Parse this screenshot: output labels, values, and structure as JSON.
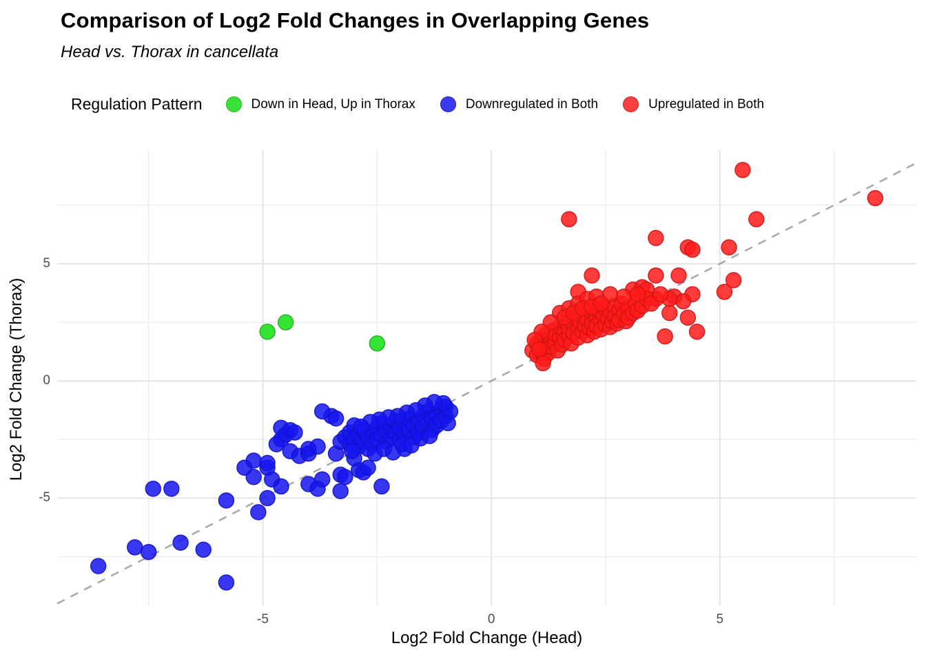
{
  "title": "Comparison of Log2 Fold Changes in Overlapping Genes",
  "subtitle": "Head vs. Thorax in cancellata",
  "legend": {
    "title": "Regulation Pattern",
    "items": [
      {
        "label": "Down in Head, Up in Thorax",
        "color": "#38E238",
        "stroke": "#27B827"
      },
      {
        "label": "Downregulated in Both",
        "color": "#3A3AF0",
        "stroke": "#1D1DC8"
      },
      {
        "label": "Upregulated in Both",
        "color": "#F84040",
        "stroke": "#D42020"
      }
    ]
  },
  "colors": {
    "grid_major": "#E4E4E4",
    "grid_minor": "#EEEEEE",
    "reference_line": "#A9A9A9",
    "tick_label": "#4D4D4D"
  },
  "chart_data": {
    "type": "scatter",
    "title": "Comparison of Log2 Fold Changes in Overlapping Genes",
    "subtitle": "Head vs. Thorax in cancellata",
    "xlabel": "Log2 Fold Change (Head)",
    "ylabel": "Log2 Fold Change (Thorax)",
    "xlim": [
      -9.5,
      9.3
    ],
    "ylim": [
      -9.6,
      9.85
    ],
    "x_ticks": [
      -5,
      0,
      5
    ],
    "y_ticks": [
      5,
      0,
      -5
    ],
    "x_minor_ticks": [
      -7.5,
      -2.5,
      2.5,
      7.5
    ],
    "y_minor_ticks": [
      7.5,
      2.5,
      -2.5,
      -7.5
    ],
    "grid": true,
    "legend_position": "top",
    "reference_line": {
      "kind": "identity y=x",
      "style": "dashed",
      "from": [
        -9.5,
        -9.5
      ],
      "to": [
        9.3,
        9.3
      ]
    },
    "point_radius_px": 11,
    "series": [
      {
        "name": "Down in Head, Up in Thorax",
        "fill": "#10E010",
        "stroke": "#22AA22",
        "points": [
          [
            -4.9,
            2.1
          ],
          [
            -4.5,
            2.5
          ],
          [
            -2.5,
            1.6
          ]
        ]
      },
      {
        "name": "Downregulated in Both",
        "fill": "#1515F0",
        "stroke": "#1111C8",
        "points": [
          [
            -8.6,
            -7.9
          ],
          [
            -7.8,
            -7.1
          ],
          [
            -7.5,
            -7.3
          ],
          [
            -7.4,
            -4.6
          ],
          [
            -7.0,
            -4.6
          ],
          [
            -6.8,
            -6.9
          ],
          [
            -6.3,
            -7.2
          ],
          [
            -5.8,
            -8.6
          ],
          [
            -5.8,
            -5.1
          ],
          [
            -5.4,
            -3.7
          ],
          [
            -5.2,
            -3.4
          ],
          [
            -5.2,
            -4.1
          ],
          [
            -5.1,
            -5.6
          ],
          [
            -4.9,
            -3.7
          ],
          [
            -4.9,
            -3.5
          ],
          [
            -4.8,
            -4.2
          ],
          [
            -4.9,
            -5.0
          ],
          [
            -4.6,
            -4.5
          ],
          [
            -4.6,
            -2.5
          ],
          [
            -4.6,
            -2.0
          ],
          [
            -4.5,
            -2.3
          ],
          [
            -4.4,
            -2.1
          ],
          [
            -4.3,
            -2.2
          ],
          [
            -4.4,
            -3.0
          ],
          [
            -4.7,
            -2.7
          ],
          [
            -4.2,
            -3.2
          ],
          [
            -4.0,
            -3.1
          ],
          [
            -4.0,
            -2.9
          ],
          [
            -3.8,
            -2.8
          ],
          [
            -4.0,
            -4.4
          ],
          [
            -3.8,
            -4.6
          ],
          [
            -3.7,
            -4.2
          ],
          [
            -3.4,
            -3.1
          ],
          [
            -3.3,
            -4.0
          ],
          [
            -3.2,
            -4.1
          ],
          [
            -2.9,
            -3.8
          ],
          [
            -2.8,
            -3.9
          ],
          [
            -3.3,
            -4.7
          ],
          [
            -2.4,
            -4.5
          ],
          [
            -2.7,
            -3.7
          ],
          [
            -3.0,
            -3.3
          ],
          [
            -3.5,
            -1.5
          ],
          [
            -3.4,
            -1.6
          ],
          [
            -3.7,
            -1.3
          ],
          [
            -1.9,
            -2.9
          ],
          [
            -3.3,
            -2.6
          ],
          [
            -3.2,
            -2.4
          ],
          [
            -3.1,
            -2.7
          ],
          [
            -3.1,
            -2.2
          ],
          [
            -3.0,
            -2.5
          ],
          [
            -3.0,
            -1.9
          ],
          [
            -2.9,
            -2.8
          ],
          [
            -2.9,
            -2.3
          ],
          [
            -2.8,
            -2.6
          ],
          [
            -2.8,
            -2.1
          ],
          [
            -2.7,
            -2.4
          ],
          [
            -2.7,
            -2.9
          ],
          [
            -2.6,
            -2.2
          ],
          [
            -2.6,
            -2.7
          ],
          [
            -2.5,
            -2.0
          ],
          [
            -2.5,
            -2.5
          ],
          [
            -2.4,
            -2.3
          ],
          [
            -2.4,
            -1.8
          ],
          [
            -2.3,
            -2.6
          ],
          [
            -2.3,
            -2.1
          ],
          [
            -2.2,
            -2.4
          ],
          [
            -2.2,
            -1.9
          ],
          [
            -2.1,
            -2.2
          ],
          [
            -2.1,
            -1.7
          ],
          [
            -2.0,
            -2.5
          ],
          [
            -2.0,
            -2.0
          ],
          [
            -1.9,
            -1.8
          ],
          [
            -1.9,
            -2.3
          ],
          [
            -1.8,
            -2.1
          ],
          [
            -1.8,
            -1.6
          ],
          [
            -1.7,
            -1.9
          ],
          [
            -1.7,
            -2.4
          ],
          [
            -1.6,
            -1.7
          ],
          [
            -1.6,
            -2.2
          ],
          [
            -1.5,
            -1.5
          ],
          [
            -1.5,
            -2.0
          ],
          [
            -1.4,
            -1.8
          ],
          [
            -1.4,
            -1.3
          ],
          [
            -1.3,
            -1.6
          ],
          [
            -1.3,
            -2.1
          ],
          [
            -1.2,
            -1.4
          ],
          [
            -1.2,
            -1.9
          ],
          [
            -1.1,
            -1.2
          ],
          [
            -1.1,
            -1.7
          ],
          [
            -1.0,
            -1.5
          ],
          [
            -1.0,
            -1.1
          ],
          [
            -0.9,
            -1.3
          ],
          [
            -0.95,
            -1.8
          ],
          [
            -1.05,
            -0.95
          ],
          [
            -1.25,
            -0.9
          ],
          [
            -1.45,
            -1.05
          ],
          [
            -1.65,
            -1.25
          ],
          [
            -1.85,
            -1.35
          ],
          [
            -2.05,
            -1.5
          ],
          [
            -2.25,
            -1.55
          ],
          [
            -2.45,
            -1.65
          ],
          [
            -2.65,
            -1.75
          ],
          [
            -2.85,
            -1.95
          ],
          [
            -3.05,
            -3.0
          ],
          [
            -2.55,
            -3.1
          ],
          [
            -2.35,
            -2.9
          ],
          [
            -2.15,
            -3.05
          ],
          [
            -1.95,
            -2.7
          ],
          [
            -1.75,
            -2.75
          ],
          [
            -1.55,
            -2.45
          ],
          [
            -1.35,
            -2.35
          ]
        ]
      },
      {
        "name": "Upregulated in Both",
        "fill": "#FF1A1A",
        "stroke": "#CC1414",
        "points": [
          [
            5.5,
            9.0
          ],
          [
            8.4,
            7.8
          ],
          [
            1.7,
            6.9
          ],
          [
            5.8,
            6.9
          ],
          [
            3.6,
            6.1
          ],
          [
            4.3,
            5.7
          ],
          [
            4.4,
            5.6
          ],
          [
            5.2,
            5.7
          ],
          [
            2.2,
            4.5
          ],
          [
            3.6,
            4.5
          ],
          [
            4.1,
            4.5
          ],
          [
            5.3,
            4.3
          ],
          [
            1.9,
            3.8
          ],
          [
            3.1,
            3.9
          ],
          [
            3.3,
            4.0
          ],
          [
            3.4,
            3.9
          ],
          [
            5.1,
            3.8
          ],
          [
            4.0,
            3.6
          ],
          [
            4.4,
            3.7
          ],
          [
            4.2,
            3.4
          ],
          [
            3.9,
            3.5
          ],
          [
            3.9,
            2.9
          ],
          [
            4.3,
            2.7
          ],
          [
            4.5,
            2.1
          ],
          [
            3.8,
            1.9
          ],
          [
            3.6,
            3.5
          ],
          [
            0.9,
            1.3
          ],
          [
            1.0,
            1.1
          ],
          [
            1.0,
            1.6
          ],
          [
            1.1,
            1.4
          ],
          [
            1.1,
            1.8
          ],
          [
            1.15,
            0.95
          ],
          [
            1.2,
            1.6
          ],
          [
            1.2,
            2.0
          ],
          [
            1.25,
            1.2
          ],
          [
            1.3,
            1.8
          ],
          [
            1.3,
            1.45
          ],
          [
            1.35,
            2.15
          ],
          [
            1.4,
            1.6
          ],
          [
            1.4,
            2.0
          ],
          [
            1.45,
            1.3
          ],
          [
            1.5,
            1.85
          ],
          [
            1.5,
            2.3
          ],
          [
            1.55,
            1.55
          ],
          [
            1.6,
            2.1
          ],
          [
            1.6,
            1.75
          ],
          [
            1.65,
            2.45
          ],
          [
            1.7,
            1.9
          ],
          [
            1.7,
            2.25
          ],
          [
            1.75,
            1.6
          ],
          [
            1.8,
            2.4
          ],
          [
            1.8,
            2.05
          ],
          [
            1.85,
            2.7
          ],
          [
            1.9,
            2.2
          ],
          [
            1.9,
            1.85
          ],
          [
            1.95,
            2.5
          ],
          [
            2.0,
            2.1
          ],
          [
            2.0,
            2.75
          ],
          [
            2.05,
            2.35
          ],
          [
            2.1,
            1.95
          ],
          [
            2.1,
            2.6
          ],
          [
            2.15,
            2.25
          ],
          [
            2.2,
            2.9
          ],
          [
            2.2,
            2.45
          ],
          [
            2.25,
            2.1
          ],
          [
            2.3,
            2.7
          ],
          [
            2.3,
            2.35
          ],
          [
            2.35,
            3.0
          ],
          [
            2.4,
            2.55
          ],
          [
            2.4,
            2.2
          ],
          [
            2.45,
            2.85
          ],
          [
            2.5,
            2.4
          ],
          [
            2.5,
            3.1
          ],
          [
            2.55,
            2.65
          ],
          [
            2.6,
            2.3
          ],
          [
            2.6,
            2.95
          ],
          [
            2.65,
            2.55
          ],
          [
            2.7,
            3.2
          ],
          [
            2.7,
            2.75
          ],
          [
            2.75,
            2.45
          ],
          [
            2.8,
            3.0
          ],
          [
            2.8,
            2.6
          ],
          [
            2.85,
            3.3
          ],
          [
            2.9,
            2.85
          ],
          [
            2.95,
            2.55
          ],
          [
            3.0,
            3.1
          ],
          [
            3.0,
            2.7
          ],
          [
            3.1,
            2.9
          ],
          [
            3.15,
            3.35
          ],
          [
            3.2,
            3.0
          ],
          [
            3.3,
            3.2
          ],
          [
            3.4,
            3.5
          ],
          [
            3.5,
            3.3
          ],
          [
            3.7,
            3.7
          ],
          [
            1.5,
            2.9
          ],
          [
            1.7,
            3.1
          ],
          [
            1.9,
            3.3
          ],
          [
            2.1,
            3.5
          ],
          [
            2.3,
            3.6
          ],
          [
            2.6,
            3.7
          ],
          [
            1.3,
            2.5
          ],
          [
            1.1,
            2.1
          ],
          [
            2.9,
            3.6
          ],
          [
            3.2,
            3.7
          ],
          [
            1.6,
            2.7
          ],
          [
            1.8,
            2.9
          ],
          [
            2.0,
            3.1
          ],
          [
            2.2,
            3.15
          ],
          [
            2.4,
            3.3
          ],
          [
            0.95,
            1.75
          ],
          [
            1.05,
            1.35
          ],
          [
            1.13,
            0.76
          ]
        ]
      }
    ]
  }
}
